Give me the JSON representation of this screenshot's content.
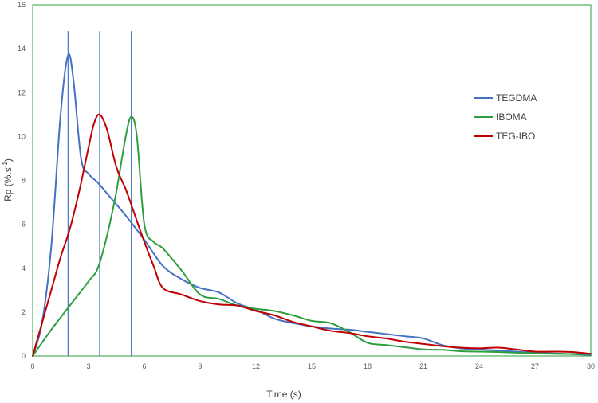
{
  "chart_data": {
    "type": "line",
    "title": "",
    "xlabel": "Time (s)",
    "ylabel_main": "Rp (%.s",
    "ylabel_sup": "-1",
    "ylabel_close": ")",
    "xlim": [
      0,
      30
    ],
    "ylim": [
      0,
      16
    ],
    "xticks": [
      0,
      3,
      6,
      9,
      12,
      15,
      18,
      21,
      24,
      27,
      30
    ],
    "yticks": [
      0,
      2,
      4,
      6,
      8,
      10,
      12,
      14,
      16
    ],
    "grid": false,
    "legend_position": "right",
    "vlines": [
      1.9,
      3.6,
      5.3
    ],
    "vline_color": "#4472c4",
    "series": [
      {
        "name": "TEGDMA",
        "color": "#4472c4",
        "x": [
          0,
          0.5,
          1.0,
          1.5,
          1.9,
          2.2,
          2.6,
          3.0,
          3.5,
          4.0,
          5.0,
          6.0,
          7.0,
          8.0,
          9.0,
          10.0,
          11.0,
          12.0,
          13.0,
          14.0,
          15.0,
          16.0,
          17.0,
          18.0,
          19.0,
          20.0,
          21.0,
          22.0,
          23.0,
          24.0,
          25.0,
          26.0,
          27.0,
          28.0,
          29.0,
          30.0
        ],
        "y": [
          0,
          1.5,
          5.0,
          11.0,
          13.7,
          12.5,
          9.0,
          8.3,
          7.9,
          7.4,
          6.4,
          5.3,
          4.1,
          3.5,
          3.1,
          2.9,
          2.4,
          2.1,
          1.7,
          1.5,
          1.35,
          1.25,
          1.2,
          1.1,
          1.0,
          0.9,
          0.8,
          0.5,
          0.35,
          0.3,
          0.25,
          0.2,
          0.15,
          0.12,
          0.08,
          0.05
        ]
      },
      {
        "name": "IBOMA",
        "color": "#2e9e3e",
        "x": [
          0,
          1.0,
          2.0,
          3.0,
          3.5,
          4.0,
          4.5,
          5.0,
          5.3,
          5.6,
          6.0,
          6.5,
          7.0,
          8.0,
          9.0,
          10.0,
          11.0,
          12.0,
          13.0,
          14.0,
          15.0,
          16.0,
          17.0,
          18.0,
          19.0,
          20.0,
          21.0,
          22.0,
          23.0,
          24.0,
          25.0,
          26.0,
          27.0,
          28.0,
          29.0,
          30.0
        ],
        "y": [
          0,
          1.2,
          2.3,
          3.4,
          4.0,
          5.5,
          7.5,
          10.0,
          10.9,
          10.0,
          6.0,
          5.2,
          4.9,
          3.9,
          2.8,
          2.6,
          2.3,
          2.15,
          2.05,
          1.85,
          1.6,
          1.5,
          1.1,
          0.6,
          0.5,
          0.4,
          0.3,
          0.28,
          0.22,
          0.2,
          0.18,
          0.15,
          0.12,
          0.1,
          0.09,
          0.08
        ]
      },
      {
        "name": "TEG-IBO",
        "color": "#c00000",
        "x": [
          0,
          0.5,
          1.0,
          1.5,
          2.0,
          2.5,
          3.0,
          3.3,
          3.6,
          4.0,
          4.5,
          5.0,
          5.5,
          6.0,
          6.5,
          7.0,
          8.0,
          9.0,
          10.0,
          11.0,
          12.0,
          13.0,
          14.0,
          15.0,
          16.0,
          17.0,
          18.0,
          19.0,
          20.0,
          21.0,
          22.0,
          23.0,
          24.0,
          25.0,
          26.0,
          27.0,
          28.0,
          29.0,
          30.0
        ],
        "y": [
          0,
          1.5,
          3.0,
          4.5,
          5.8,
          7.5,
          9.5,
          10.6,
          11.0,
          10.3,
          8.6,
          7.6,
          6.4,
          5.2,
          4.1,
          3.1,
          2.8,
          2.5,
          2.35,
          2.3,
          2.05,
          1.85,
          1.55,
          1.35,
          1.15,
          1.05,
          0.9,
          0.8,
          0.65,
          0.55,
          0.45,
          0.38,
          0.35,
          0.38,
          0.3,
          0.2,
          0.2,
          0.18,
          0.1
        ]
      }
    ]
  }
}
